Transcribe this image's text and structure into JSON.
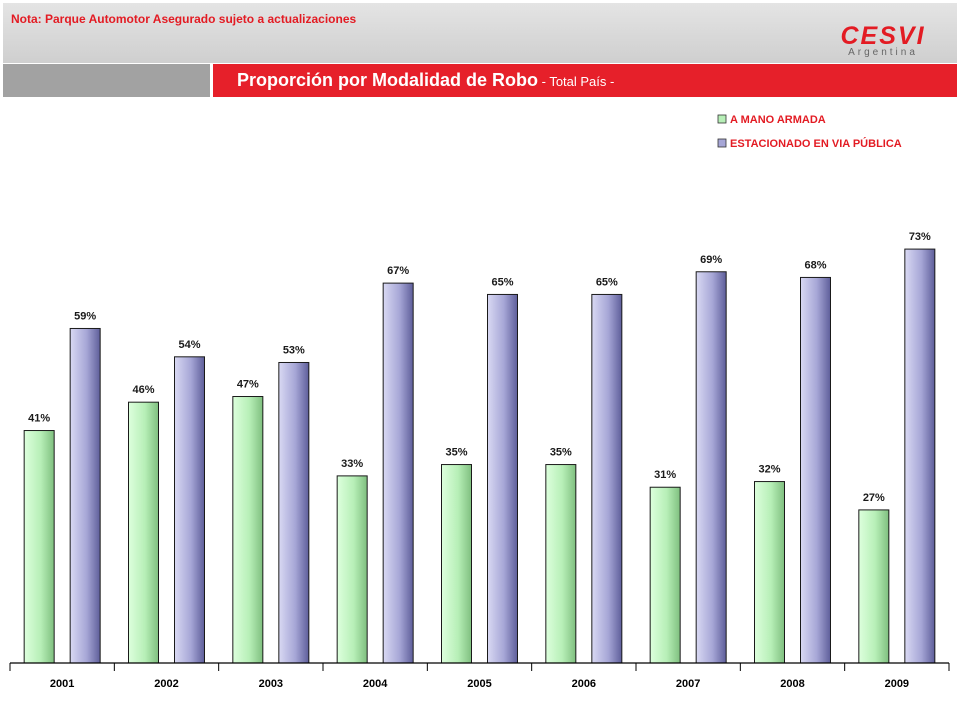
{
  "header": {
    "note": "Nota: Parque Automotor Asegurado sujeto a actualizaciones",
    "logo_main": "CESVI",
    "logo_sub": "Argentina"
  },
  "title": {
    "main": "Proporción por Modalidad de Robo",
    "sub": " - Total País -"
  },
  "colors": {
    "accent": "#e6202a",
    "series_green": "#b7efb7",
    "series_purple": "#a6a6d6"
  },
  "chart_data": {
    "type": "bar",
    "categories": [
      "2001",
      "2002",
      "2003",
      "2004",
      "2005",
      "2006",
      "2007",
      "2008",
      "2009"
    ],
    "series": [
      {
        "name": "A MANO ARMADA",
        "values": [
          41,
          46,
          47,
          33,
          35,
          35,
          31,
          32,
          27
        ],
        "labels": [
          "41%",
          "46%",
          "47%",
          "33%",
          "35%",
          "35%",
          "31%",
          "32%",
          "27%"
        ]
      },
      {
        "name": "ESTACIONADO EN VIA PÚBLICA",
        "values": [
          59,
          54,
          53,
          67,
          65,
          65,
          69,
          68,
          73
        ],
        "labels": [
          "59%",
          "54%",
          "53%",
          "67%",
          "65%",
          "65%",
          "69%",
          "68%",
          "73%"
        ]
      }
    ],
    "ylim": [
      0,
      100
    ],
    "legend_position": "top-right",
    "grid": false
  }
}
